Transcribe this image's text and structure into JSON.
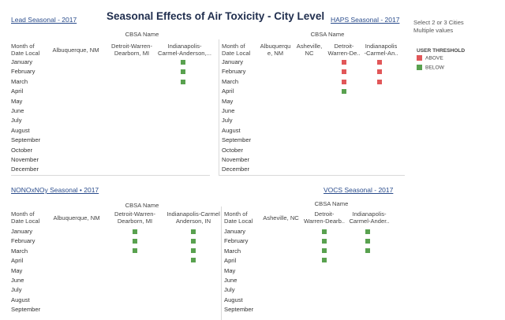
{
  "title": "Seasonal Effects of Air Toxicity - City Level",
  "months": [
    "January",
    "February",
    "March",
    "April",
    "May",
    "June",
    "July",
    "August",
    "September",
    "October",
    "November",
    "December"
  ],
  "month_header": [
    "Month of",
    "Date Local"
  ],
  "cbsa_label": "CBSA Name",
  "colors": {
    "above": "#e15759",
    "below": "#59a14f"
  },
  "side": {
    "filter_label": "Select 2 or 3 Cities",
    "filter_value": "Multiple values",
    "legend_title": "USER THRESHOLD",
    "legend_items": [
      {
        "label": "ABOVE",
        "color": "#e15759"
      },
      {
        "label": "BELOW",
        "color": "#59a14f"
      }
    ]
  },
  "lead": {
    "title": "Lead Seasonal  - 2017",
    "cities": [
      "Albuquerque, NM",
      [
        "Detroit-Warren-",
        "Dearborn, MI"
      ],
      [
        "Indianapolis-",
        "Carmel-Anderson,..."
      ]
    ]
  },
  "haps": {
    "title": "HAPS Seasonal  - 2017",
    "cities": [
      [
        "Albuquerqu",
        "e, NM"
      ],
      [
        "Asheville,",
        "NC"
      ],
      [
        "Detroit-",
        "Warren-De.."
      ],
      [
        "Indianapolis",
        "-Carmel-An.."
      ]
    ]
  },
  "nonox": {
    "title": "NONOxNOy Seasonal • 2017",
    "cities": [
      "Albuquerque, NM",
      [
        "Detroit-Warren-",
        "Dearborn, MI"
      ],
      [
        "Indianapolis-Carmel",
        "Anderson, IN"
      ]
    ]
  },
  "vocs": {
    "title": "VOCS Seasonal - 2017",
    "cities": [
      "Asheville, NC",
      [
        "Detroit-",
        "Warren-Dearb.."
      ],
      [
        "Indianapolis-",
        "Carmel-Ander.."
      ]
    ]
  }
}
